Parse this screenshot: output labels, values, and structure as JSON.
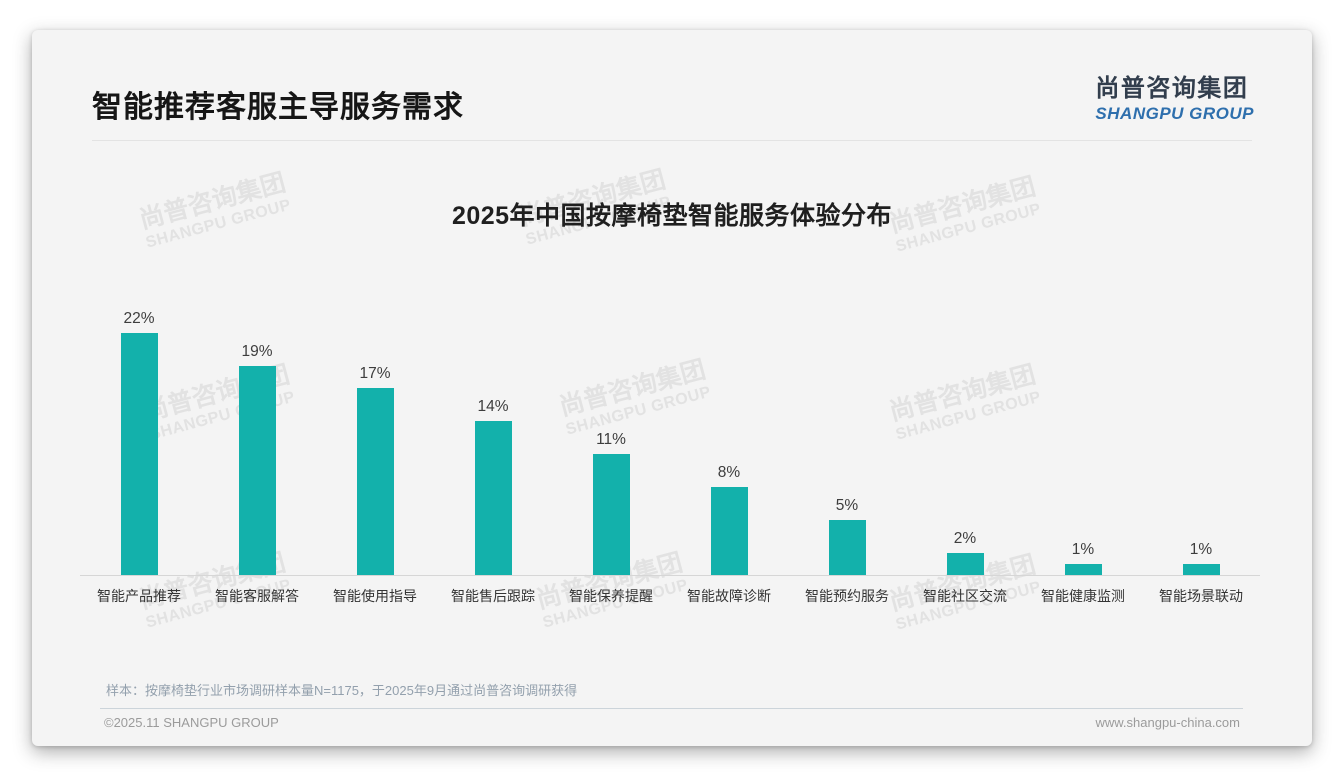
{
  "page": {
    "header": {
      "title": "智能推荐客服主导服务需求"
    },
    "logo": {
      "cn": "尚普咨询集团",
      "en": "SHANGPU GROUP"
    },
    "watermark": {
      "line1": "尚普咨询集团",
      "line2": "SHANGPU GROUP"
    },
    "footer": {
      "note": "样本：按摩椅垫行业市场调研样本量N=1175，于2025年9月通过尚普咨询调研获得",
      "copyright": "©2025.11 SHANGPU GROUP",
      "website": "www.shangpu-china.com"
    }
  },
  "chart_data": {
    "type": "bar",
    "title": "2025年中国按摩椅垫智能服务体验分布",
    "categories": [
      "智能产品推荐",
      "智能客服解答",
      "智能使用指导",
      "智能售后跟踪",
      "智能保养提醒",
      "智能故障诊断",
      "智能预约服务",
      "智能社区交流",
      "智能健康监测",
      "智能场景联动"
    ],
    "values": [
      22,
      19,
      17,
      14,
      11,
      8,
      5,
      2,
      1,
      1
    ],
    "value_labels": [
      "22%",
      "19%",
      "17%",
      "14%",
      "11%",
      "8%",
      "5%",
      "2%",
      "1%",
      "1%"
    ],
    "unit": "%",
    "bar_color": "#13b1ab",
    "value_label_color": "#3d3d3d",
    "axis_line_color": "#d6d6d6",
    "ylim": [
      0,
      24
    ],
    "grid": false,
    "legend": "none",
    "xlabel": "",
    "ylabel": ""
  }
}
